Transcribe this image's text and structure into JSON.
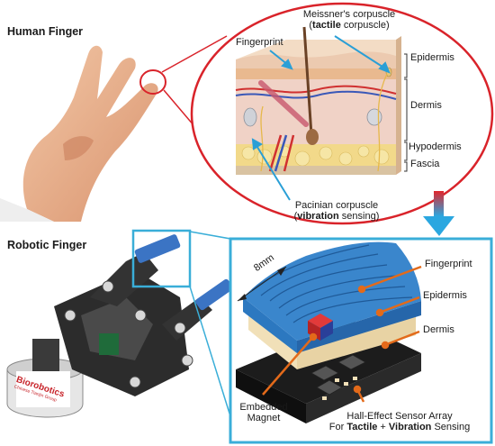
{
  "titles": {
    "human": "Human Finger",
    "robotic": "Robotic Finger"
  },
  "human_labels": {
    "meissner_line1": "Meissner's corpuscle",
    "meissner_open": "(",
    "meissner_bold": "tactile",
    "meissner_rest": " corpuscle)",
    "fingerprint": "Fingerprint",
    "epidermis": "Epidermis",
    "dermis": "Dermis",
    "hypodermis": "Hypodermis",
    "fascia": "Fascia",
    "pacinian_line1": "Pacinian corpuscle",
    "pacinian_open": "(",
    "pacinian_bold": "vibration",
    "pacinian_rest": " sensing)"
  },
  "robot_labels": {
    "dimension": "8mm",
    "fingerprint": "Fingerprint",
    "epidermis": "Epidermis",
    "dermis": "Dermis",
    "magnet_line1": "Embedded",
    "magnet_line2": "Magnet",
    "sensor_line1": "Hall-Effect Sensor Array",
    "sensor_prefix": "For ",
    "sensor_bold1": "Tactile",
    "sensor_mid": " + ",
    "sensor_bold2": "Vibration",
    "sensor_suffix": " Sensing"
  },
  "brand": {
    "name": "Biorobotics",
    "tagline": "Chinese Tianjin Group"
  },
  "colors": {
    "zoom_red": "#d9232a",
    "zoom_cyan": "#3aaed8",
    "pointer_orange": "#e36a1a",
    "pointer_blue": "#2a9fd6",
    "skin_blue": "#2c78c0",
    "dermis_cream": "#f1e0b8"
  }
}
